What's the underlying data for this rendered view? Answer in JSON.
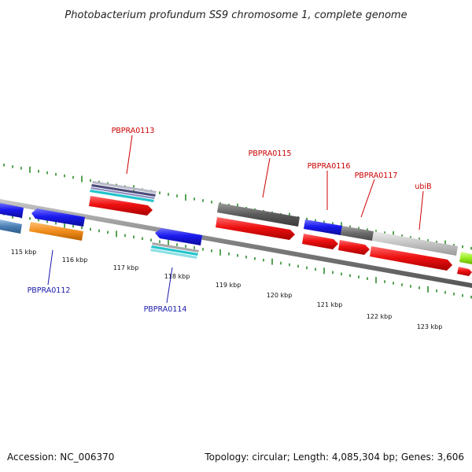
{
  "title": "Photobacterium profundum SS9 chromosome 1, complete genome",
  "footer": {
    "accession": "Accession: NC_006370",
    "topology": "Topology: circular; Length: 4,085,304 bp; Genes: 3,606"
  },
  "colors": {
    "background": "#ffffff",
    "backbone": "#7f7f7f",
    "tick_marks": "#2b8a2b",
    "label_forward": "#cc0000",
    "label_reverse": "#1a1aaa"
  },
  "position_ticks": [
    {
      "kbp": 115,
      "label": "115 kbp"
    },
    {
      "kbp": 116,
      "label": "116 kbp"
    },
    {
      "kbp": 117,
      "label": "117 kbp"
    },
    {
      "kbp": 118,
      "label": "118 kbp"
    },
    {
      "kbp": 119,
      "label": "119 kbp"
    },
    {
      "kbp": 120,
      "label": "120 kbp"
    },
    {
      "kbp": 121,
      "label": "121 kbp"
    },
    {
      "kbp": 122,
      "label": "122 kbp"
    },
    {
      "kbp": 123,
      "label": "123 kbp"
    }
  ],
  "gene_labels": [
    {
      "name": "PBPRA0112",
      "strand": "reverse"
    },
    {
      "name": "PBPRA0113",
      "strand": "forward"
    },
    {
      "name": "PBPRA0114",
      "strand": "reverse"
    },
    {
      "name": "PBPRA0115",
      "strand": "forward"
    },
    {
      "name": "PBPRA0116",
      "strand": "forward"
    },
    {
      "name": "PBPRA0117",
      "strand": "forward"
    },
    {
      "name": "ubiB",
      "strand": "forward"
    }
  ],
  "features": [
    {
      "name": "gene-left-reverse",
      "strand": "reverse",
      "color": "#1a1aee"
    },
    {
      "name": "cds-left-reverse",
      "strand": "reverse",
      "color": "#4a7fb5"
    },
    {
      "name": "gene-PBPRA0112",
      "strand": "reverse",
      "color": "#1a1aee"
    },
    {
      "name": "cds-PBPRA0112",
      "strand": "reverse",
      "color": "#f08c1c"
    },
    {
      "name": "gene-PBPRA0113",
      "strand": "forward",
      "color": "#ee1111"
    },
    {
      "name": "cds-PBPRA0113",
      "strand": "forward",
      "color": "#4b4b7a"
    },
    {
      "name": "gene-PBPRA0114",
      "strand": "reverse",
      "color": "#1a1aee"
    },
    {
      "name": "cds-PBPRA0114",
      "strand": "reverse",
      "color": "#22c4cc"
    },
    {
      "name": "gene-PBPRA0115",
      "strand": "forward",
      "color": "#ee1111"
    },
    {
      "name": "cds-PBPRA0115",
      "strand": "forward",
      "color": "#5a5a5a"
    },
    {
      "name": "cds-PBPRA0116",
      "strand": "forward",
      "color": "#1a1aee"
    },
    {
      "name": "gene-PBPRA0116",
      "strand": "forward",
      "color": "#ee1111"
    },
    {
      "name": "cds-PBPRA0117",
      "strand": "forward",
      "color": "#6a6a6a"
    },
    {
      "name": "gene-PBPRA0117",
      "strand": "forward",
      "color": "#ee1111"
    },
    {
      "name": "cds-ubiB",
      "strand": "forward",
      "color": "#c4c4c4"
    },
    {
      "name": "gene-ubiB",
      "strand": "forward",
      "color": "#ee1111"
    },
    {
      "name": "gene-right-forward",
      "strand": "forward",
      "color": "#ee1111"
    },
    {
      "name": "cds-right-forward",
      "strand": "forward",
      "color": "#99ee22"
    }
  ]
}
